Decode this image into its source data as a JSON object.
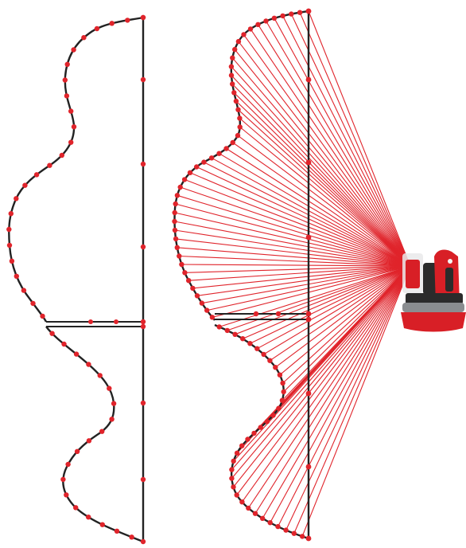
{
  "figure": {
    "description_visible_text": "",
    "colors": {
      "outline": "#222222",
      "point": "#e0242b",
      "ray": "#e0242b",
      "device_body": "#d81f26",
      "device_dark": "#2b2b2b",
      "device_gray": "#8a8d90"
    },
    "panels": [
      "traced-profile",
      "scanned-profile-with-rays"
    ],
    "device_icon": "laser-scanner-icon"
  }
}
